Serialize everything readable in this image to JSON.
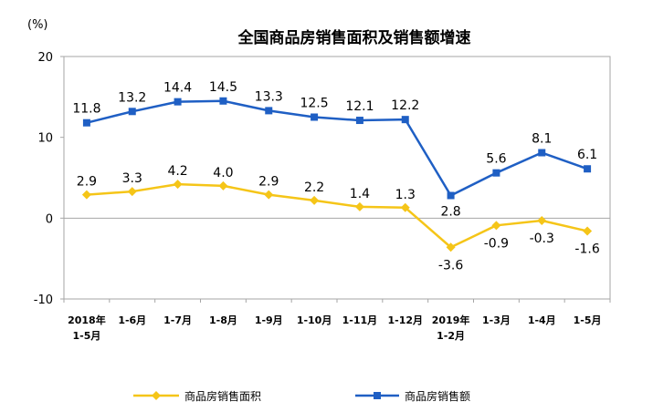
{
  "chart_data": {
    "type": "line",
    "title": "全国商品房销售面积及销售额增速",
    "ylabel": "(%)",
    "xlabel": "",
    "ylim": [
      -10,
      20
    ],
    "yticks": [
      "20",
      "10",
      "0",
      "-10"
    ],
    "categories": [
      [
        "2018年",
        "1-5月"
      ],
      [
        "1-6月"
      ],
      [
        "1-7月"
      ],
      [
        "1-8月"
      ],
      [
        "1-9月"
      ],
      [
        "1-10月"
      ],
      [
        "1-11月"
      ],
      [
        "1-12月"
      ],
      [
        "2019年",
        "1-2月"
      ],
      [
        "1-3月"
      ],
      [
        "1-4月"
      ],
      [
        "1-5月"
      ]
    ],
    "series": [
      {
        "name": "商品房销售面积",
        "color": "#f5c518",
        "marker": "diamond",
        "values": [
          2.9,
          3.3,
          4.2,
          4.0,
          2.9,
          2.2,
          1.4,
          1.3,
          -3.6,
          -0.9,
          -0.3,
          -1.6
        ],
        "labels": [
          "2.9",
          "3.3",
          "4.2",
          "4.0",
          "2.9",
          "2.2",
          "1.4",
          "1.3",
          "-3.6",
          "-0.9",
          "-0.3",
          "-1.6"
        ]
      },
      {
        "name": "商品房销售额",
        "color": "#1f5fc4",
        "marker": "square",
        "values": [
          11.8,
          13.2,
          14.4,
          14.5,
          13.3,
          12.5,
          12.1,
          12.2,
          2.8,
          5.6,
          8.1,
          6.1
        ],
        "labels": [
          "11.8",
          "13.2",
          "14.4",
          "14.5",
          "13.3",
          "12.5",
          "12.1",
          "12.2",
          "2.8",
          "5.6",
          "8.1",
          "6.1"
        ]
      }
    ],
    "grid": false,
    "legend": "bottom"
  }
}
